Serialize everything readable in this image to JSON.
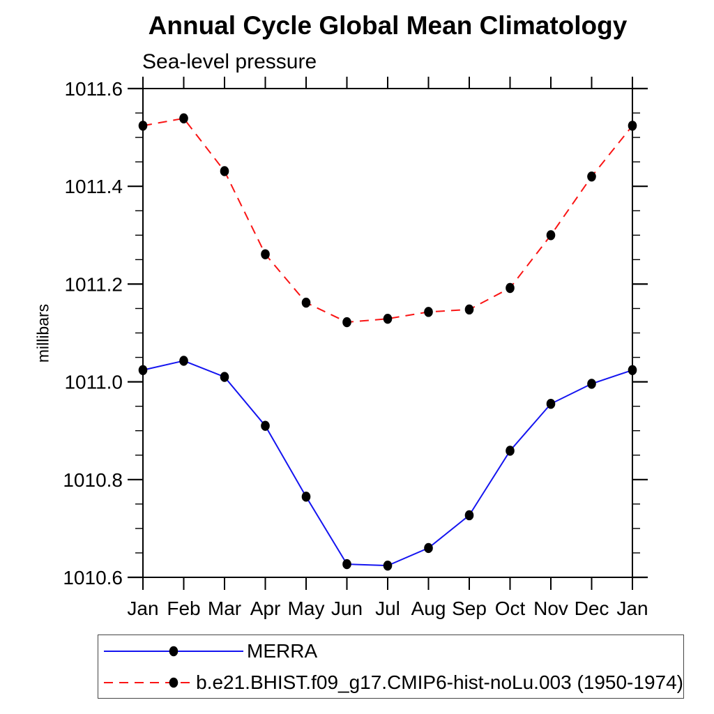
{
  "title": "Annual Cycle Global Mean Climatology",
  "subtitle": "Sea-level pressure",
  "colors": {
    "background": "#ffffff",
    "axis": "#000000",
    "text": "#000000",
    "marker": "#000000",
    "merra_line": "#1414f0",
    "model_line": "#fa1414",
    "legend_border": "#444444"
  },
  "chart_data": {
    "type": "line",
    "title": "Annual Cycle Global Mean Climatology",
    "subtitle": "Sea-level pressure",
    "xlabel": "",
    "ylabel": "millibars",
    "x_categories": [
      "Jan",
      "Feb",
      "Mar",
      "Apr",
      "May",
      "Jun",
      "Jul",
      "Aug",
      "Sep",
      "Oct",
      "Nov",
      "Dec",
      "Jan"
    ],
    "ylim": [
      1010.6,
      1011.6
    ],
    "y_major_tick_labels": [
      "1010.6",
      "1010.8",
      "1011.0",
      "1011.2",
      "1011.4",
      "1011.6"
    ],
    "y_major_step": 0.2,
    "y_minor_step": 0.05,
    "grid": false,
    "legend_position": "bottom-left-box",
    "series": [
      {
        "name": "MERRA",
        "style": "solid",
        "color": "#1414f0",
        "marker": "filled-circle",
        "values": [
          1011.024,
          1011.043,
          1011.01,
          1010.91,
          1010.765,
          1010.627,
          1010.624,
          1010.66,
          1010.727,
          1010.859,
          1010.955,
          1010.996,
          1011.024
        ]
      },
      {
        "name": "b.e21.BHIST.f09_g17.CMIP6-hist-noLu.003 (1950-1974)",
        "style": "dashed",
        "color": "#fa1414",
        "marker": "filled-circle",
        "values": [
          1011.524,
          1011.539,
          1011.431,
          1011.261,
          1011.162,
          1011.122,
          1011.129,
          1011.143,
          1011.148,
          1011.192,
          1011.3,
          1011.42,
          1011.524
        ]
      }
    ]
  }
}
